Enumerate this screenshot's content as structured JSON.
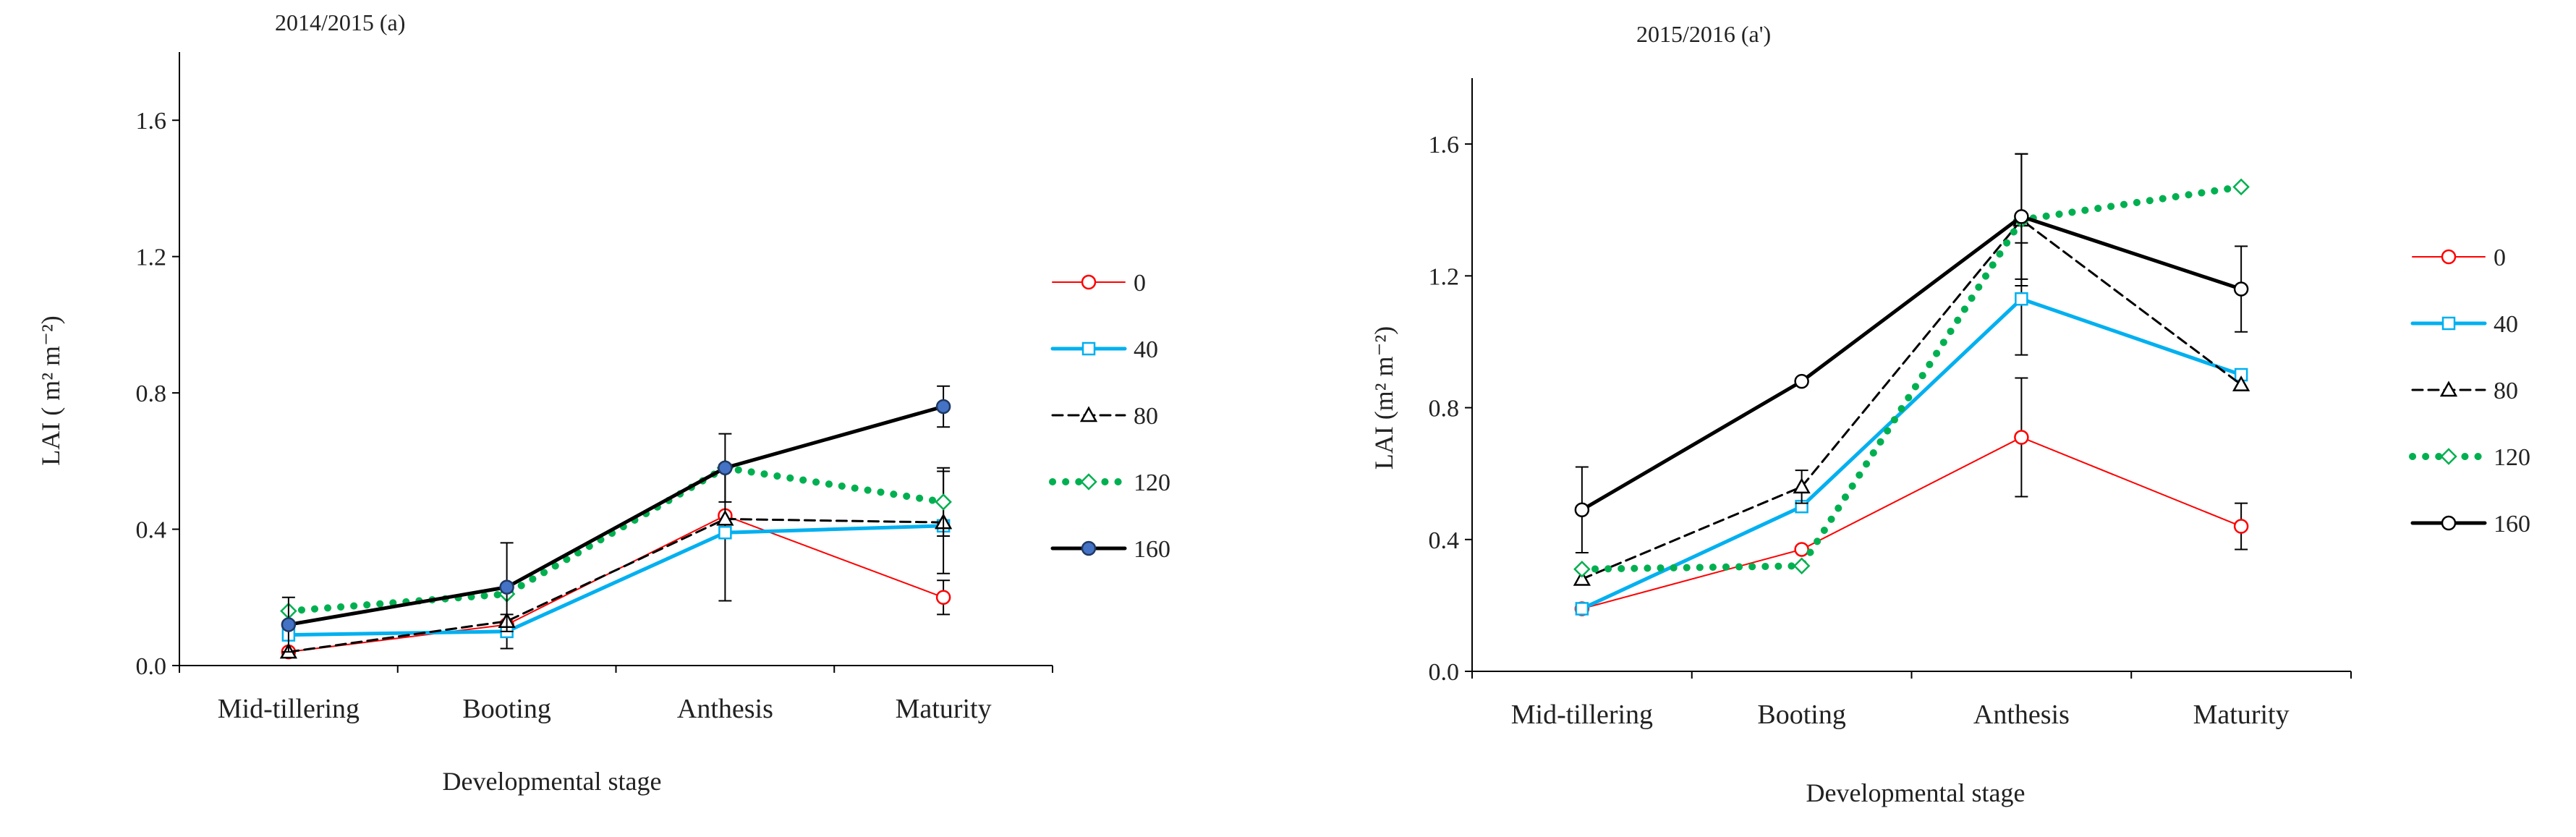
{
  "chart_data": [
    {
      "type": "line",
      "title": "2014/2015 (a)",
      "xlabel": "Developmental stage",
      "ylabel": "LAI ( m² m⁻²)",
      "categories": [
        "Mid-tillering",
        "Booting",
        "Anthesis",
        "Maturity"
      ],
      "ylim": [
        0,
        1.8
      ],
      "yticks": [
        "0.0",
        "0.4",
        "0.8",
        "1.2",
        "1.6"
      ],
      "ytick_values": [
        0,
        0.4,
        0.8,
        1.2,
        1.6
      ],
      "legend_position": "right",
      "series": [
        {
          "name": "0",
          "color": "#ff0000",
          "dash": "solid",
          "width": 2,
          "marker": "circle",
          "values": [
            0.04,
            0.12,
            0.44,
            0.2
          ],
          "errors": [
            0.0,
            0.0,
            0.0,
            0.05
          ]
        },
        {
          "name": "40",
          "color": "#00b0f0",
          "dash": "solid",
          "width": 5,
          "marker": "square",
          "values": [
            0.09,
            0.1,
            0.39,
            0.41
          ],
          "errors": [
            0.0,
            0.05,
            0.2,
            0.0
          ]
        },
        {
          "name": "80",
          "color": "#000000",
          "dash": "dashed",
          "width": 3,
          "marker": "triangle",
          "values": [
            0.04,
            0.13,
            0.43,
            0.42
          ],
          "errors": [
            0.0,
            0.0,
            0.0,
            0.15
          ]
        },
        {
          "name": "120",
          "color": "#00b050",
          "dash": "dotted",
          "width": 10,
          "marker": "diamond",
          "values": [
            0.16,
            0.21,
            0.58,
            0.48
          ],
          "errors": [
            0.0,
            0.0,
            0.0,
            0.1
          ]
        },
        {
          "name": "160",
          "color": "#000000",
          "dash": "solid",
          "width": 5,
          "marker": "circle-filled",
          "values": [
            0.12,
            0.23,
            0.58,
            0.76
          ],
          "errors": [
            0.08,
            0.13,
            0.1,
            0.06
          ]
        }
      ]
    },
    {
      "type": "line",
      "title": "2015/2016 (a')",
      "xlabel": "Developmental stage",
      "ylabel": "LAI  (m² m⁻²)",
      "categories": [
        "Mid-tillering",
        "Booting",
        "Anthesis",
        "Maturity"
      ],
      "ylim": [
        0,
        1.8
      ],
      "yticks": [
        "0.0",
        "0.4",
        "0.8",
        "1.2",
        "1.6"
      ],
      "ytick_values": [
        0,
        0.4,
        0.8,
        1.2,
        1.6
      ],
      "legend_position": "right",
      "series": [
        {
          "name": "0",
          "color": "#ff0000",
          "dash": "solid",
          "width": 2,
          "marker": "circle",
          "values": [
            0.19,
            0.37,
            0.71,
            0.44
          ],
          "errors": [
            0.0,
            0.0,
            0.18,
            0.07
          ]
        },
        {
          "name": "40",
          "color": "#00b0f0",
          "dash": "solid",
          "width": 5,
          "marker": "square",
          "values": [
            0.19,
            0.5,
            1.13,
            0.9
          ],
          "errors": [
            0.0,
            0.0,
            0.17,
            0.0
          ]
        },
        {
          "name": "80",
          "color": "#000000",
          "dash": "dashed",
          "width": 3,
          "marker": "triangle",
          "values": [
            0.28,
            0.56,
            1.37,
            0.87
          ],
          "errors": [
            0.0,
            0.05,
            0.2,
            0.0
          ]
        },
        {
          "name": "120",
          "color": "#00b050",
          "dash": "dotted",
          "width": 10,
          "marker": "diamond",
          "values": [
            0.31,
            0.32,
            1.37,
            1.47
          ],
          "errors": [
            0.0,
            0.0,
            0.0,
            0.0
          ]
        },
        {
          "name": "160",
          "color": "#000000",
          "dash": "solid",
          "width": 5,
          "marker": "circle",
          "values": [
            0.49,
            0.88,
            1.38,
            1.16
          ],
          "errors": [
            0.13,
            0.0,
            0.19,
            0.13
          ]
        }
      ]
    }
  ]
}
